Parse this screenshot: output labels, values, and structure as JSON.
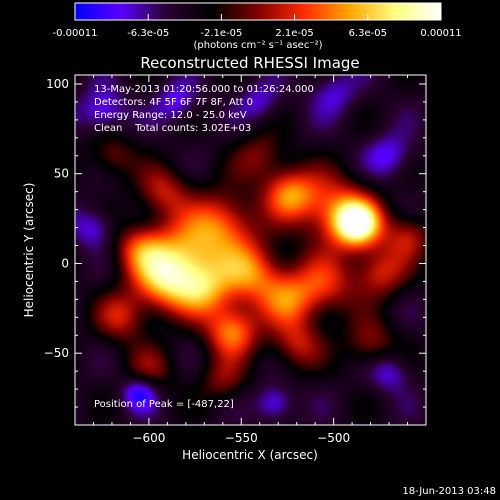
{
  "chart_data": {
    "type": "heatmap",
    "title": "Reconstructed RHESSI Image",
    "xlabel": "Heliocentric X (arcsec)",
    "ylabel": "Heliocentric Y (arcsec)",
    "xlim": [
      -640,
      -450
    ],
    "ylim": [
      -90,
      105
    ],
    "x_ticks": [
      -600,
      -550,
      -500
    ],
    "y_ticks": [
      -50,
      0,
      50,
      100
    ],
    "colorbar": {
      "min": -0.00011,
      "max": 0.00011,
      "tick_labels": [
        "-0.00011",
        "-6.3e-05",
        "-2.1e-05",
        "2.1e-05",
        "6.3e-05",
        "0.00011"
      ],
      "unit_label": "(photons cm⁻² s⁻¹ asec⁻²)",
      "colormap": [
        "#0000ff",
        "#5a00ff",
        "#2a0030",
        "#000000",
        "#800000",
        "#ff2a00",
        "#ffa500",
        "#ffff80",
        "#ffffff"
      ]
    },
    "annotations": [
      "13-May-2013 01:20:56.000 to 01:26:24.000",
      "Detectors: 4F 5F 6F 7F 8F, Att 0",
      "Energy Range: 12.0 - 25.0 keV",
      "Clean    Total counts: 3.02E+03"
    ],
    "peak_label": "Position of Peak = [-487,22]",
    "peak": {
      "x": -487,
      "y": 22
    },
    "sources": [
      {
        "x": -487,
        "y": 22,
        "w": 1.0,
        "s": 9
      },
      {
        "x": -500,
        "y": 30,
        "w": 0.55,
        "s": 14
      },
      {
        "x": -524,
        "y": 39,
        "w": 0.6,
        "s": 10
      },
      {
        "x": -560,
        "y": 22,
        "w": 0.55,
        "s": 13
      },
      {
        "x": -580,
        "y": 5,
        "w": 0.6,
        "s": 14
      },
      {
        "x": -592,
        "y": -10,
        "w": 0.65,
        "s": 12
      },
      {
        "x": -605,
        "y": 8,
        "w": 0.45,
        "s": 10
      },
      {
        "x": -615,
        "y": -30,
        "w": 0.4,
        "s": 10
      },
      {
        "x": -570,
        "y": -15,
        "w": 0.55,
        "s": 11
      },
      {
        "x": -545,
        "y": -5,
        "w": 0.6,
        "s": 12
      },
      {
        "x": -555,
        "y": -38,
        "w": 0.65,
        "s": 10
      },
      {
        "x": -525,
        "y": -20,
        "w": 0.5,
        "s": 11
      },
      {
        "x": -505,
        "y": -12,
        "w": 0.45,
        "s": 12
      },
      {
        "x": -475,
        "y": -5,
        "w": 0.45,
        "s": 10
      },
      {
        "x": -460,
        "y": 15,
        "w": 0.4,
        "s": 9
      },
      {
        "x": -540,
        "y": 60,
        "w": 0.3,
        "s": 10
      },
      {
        "x": -592,
        "y": 40,
        "w": 0.4,
        "s": 10
      },
      {
        "x": -620,
        "y": 60,
        "w": 0.3,
        "s": 9
      },
      {
        "x": -520,
        "y": -45,
        "w": 0.4,
        "s": 10
      },
      {
        "x": -480,
        "y": -45,
        "w": 0.35,
        "s": 10
      },
      {
        "x": -600,
        "y": -60,
        "w": 0.3,
        "s": 10
      },
      {
        "x": -560,
        "y": -65,
        "w": 0.3,
        "s": 9
      },
      {
        "x": -625,
        "y": 85,
        "w": -0.35,
        "s": 9
      },
      {
        "x": -585,
        "y": 90,
        "w": -0.3,
        "s": 8
      },
      {
        "x": -605,
        "y": -72,
        "w": -0.45,
        "s": 7
      },
      {
        "x": -532,
        "y": -78,
        "w": -0.35,
        "s": 7
      },
      {
        "x": -470,
        "y": -60,
        "w": -0.3,
        "s": 8
      },
      {
        "x": -470,
        "y": 60,
        "w": -0.3,
        "s": 9
      },
      {
        "x": -500,
        "y": 95,
        "w": -0.25,
        "s": 9
      },
      {
        "x": -630,
        "y": 20,
        "w": -0.3,
        "s": 8
      },
      {
        "x": -540,
        "y": 90,
        "w": -0.25,
        "s": 8
      }
    ]
  },
  "footer": {
    "date": "18-Jun-2013 03:48"
  }
}
